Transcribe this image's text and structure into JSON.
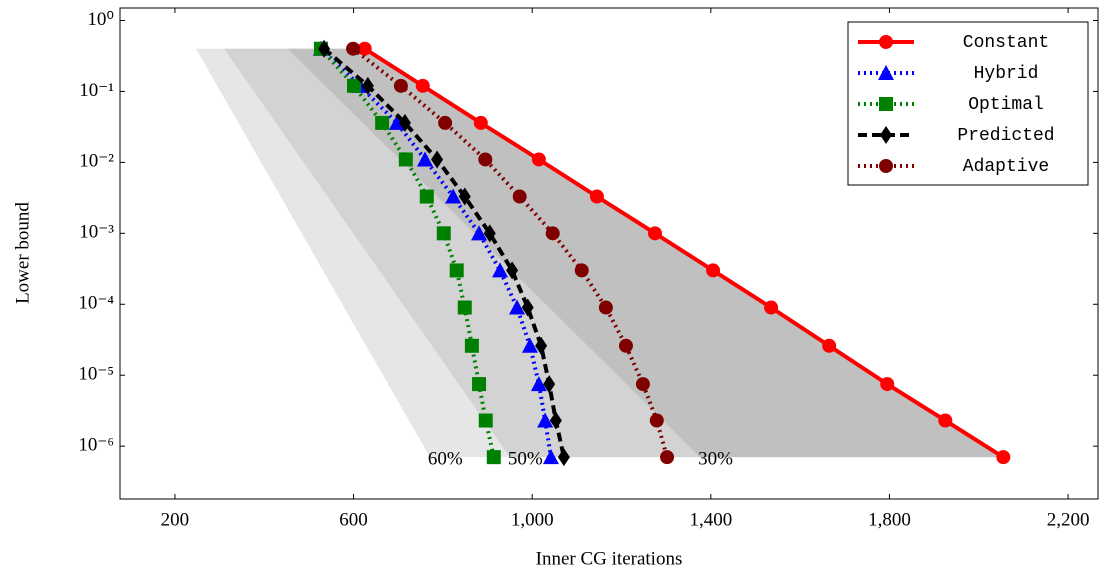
{
  "chart_data": {
    "type": "line",
    "x_label": "Inner CG iterations",
    "y_label": "Lower bound",
    "log_y": true,
    "legend": "upper right",
    "xlim": [
      77,
      2267
    ],
    "ylim": [
      1.5,
      1.8e-07
    ],
    "xticks": [
      200,
      600,
      {
        "value": 1000,
        "label": "1,000"
      },
      {
        "value": 1400,
        "label": "1,400"
      },
      {
        "value": 1800,
        "label": "1,800"
      },
      {
        "value": 2200,
        "label": "2,200"
      }
    ],
    "yticks": [
      {
        "value": 1,
        "label": "10⁰"
      },
      {
        "value": 0.1,
        "label": "10⁻¹"
      },
      {
        "value": 0.01,
        "label": "10⁻²"
      },
      {
        "value": 0.001,
        "label": "10⁻³"
      },
      {
        "value": 0.0001,
        "label": "10⁻⁴"
      },
      {
        "value": 1e-05,
        "label": "10⁻⁵"
      },
      {
        "value": 1e-06,
        "label": "10⁻⁶"
      }
    ],
    "regions": [
      {
        "label": "60%",
        "color": "#e6e6e6",
        "x": [
          247,
          625,
          2055,
          771
        ],
        "y": [
          0.4,
          0.4,
          7e-07,
          7e-07
        ]
      },
      {
        "label": "50%",
        "color": "#d3d3d3",
        "x": [
          310,
          625,
          2055,
          950
        ],
        "y": [
          0.4,
          0.4,
          7e-07,
          7e-07
        ]
      },
      {
        "label": "30%",
        "color": "#c0c0c0",
        "x": [
          453,
          625,
          2055,
          1376
        ],
        "y": [
          0.4,
          0.4,
          7e-07,
          7e-07
        ]
      }
    ],
    "y": [
      0.4,
      0.12,
      0.036,
      0.011,
      0.0033,
      0.001,
      0.0003,
      9e-05,
      2.6e-05,
      7.5e-06,
      2.3e-06,
      7e-07
    ],
    "series": [
      {
        "name": "Constant",
        "color": "#ff0000",
        "dash": "solid",
        "marker": "circle",
        "x": [
          625,
          755,
          885,
          1015,
          1145,
          1275,
          1405,
          1535,
          1665,
          1795,
          1925,
          2055
        ]
      },
      {
        "name": "Hybrid",
        "color": "#0000ff",
        "dash": "dotted",
        "marker": "triangle",
        "x": [
          527,
          614,
          697,
          760,
          823,
          881,
          928,
          966,
          995,
          1015,
          1029,
          1042
        ]
      },
      {
        "name": "Optimal",
        "color": "#008000",
        "dash": "dotted",
        "marker": "square",
        "x": [
          527,
          601,
          664,
          717,
          764,
          802,
          831,
          849,
          865,
          881,
          896,
          914
        ]
      },
      {
        "name": "Predicted",
        "color": "#000000",
        "dash": "dashed",
        "marker": "diamond",
        "x": [
          534,
          632,
          715,
          787,
          849,
          905,
          955,
          990,
          1020,
          1038,
          1053,
          1071
        ]
      },
      {
        "name": "Adaptive",
        "color": "#800000",
        "dash": "dotted",
        "marker": "circle",
        "x": [
          599,
          706,
          805,
          895,
          972,
          1046,
          1111,
          1165,
          1210,
          1248,
          1279,
          1302
        ]
      }
    ]
  }
}
